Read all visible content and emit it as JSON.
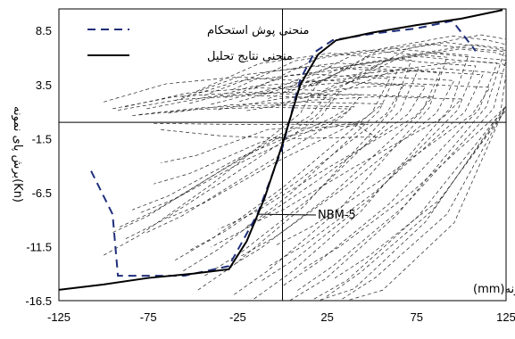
{
  "chart_data": {
    "type": "line",
    "xlim": [
      -125,
      125
    ],
    "ylim": [
      -16.5,
      10.5
    ],
    "x_ticks": [
      "-125",
      "-75",
      "-25",
      "25",
      "75",
      "125"
    ],
    "x_tick_values": [
      -125,
      -75,
      -25,
      25,
      75,
      125
    ],
    "y_ticks": [
      "8.5",
      "3.5",
      "-1.5",
      "-6.5",
      "-11.5",
      "-16.5"
    ],
    "y_tick_values": [
      8.5,
      3.5,
      -1.5,
      -6.5,
      -11.5,
      -16.5
    ],
    "ylabel": "برش پای نمونه(Kn)",
    "xlabel": "تغییرمکان بالای نمونه(mm)",
    "annotation": "NBM-5",
    "annotation_point": [
      -14,
      -8.5
    ],
    "legend_position": "top-left",
    "legend": [
      {
        "label": "منحنی پوش استحکام",
        "style": "dashed",
        "color": "#1f2f7a"
      },
      {
        "label": "منحنی نتایج تحلیل",
        "style": "solid",
        "color": "#000000"
      }
    ],
    "series": [
      {
        "name": "منحنی پوش استحکام",
        "style": "dashed",
        "color": "#1f2f7a",
        "x": [
          -107,
          -95,
          -92,
          -55,
          -30,
          -14,
          0,
          10,
          18,
          28,
          50,
          75,
          95,
          108
        ],
        "y": [
          -4.5,
          -8.5,
          -14.2,
          -14.2,
          -13.3,
          -8.5,
          -2.3,
          4.0,
          6.5,
          7.6,
          8.2,
          8.7,
          9.4,
          6.6
        ]
      },
      {
        "name": "منحنی نتایج تحلیل",
        "style": "solid",
        "color": "#000000",
        "x": [
          -125,
          -100,
          -75,
          -50,
          -30,
          -20,
          -10,
          0,
          10,
          20,
          30,
          50,
          75,
          100,
          123
        ],
        "y": [
          -15.5,
          -15.0,
          -14.4,
          -14.0,
          -13.6,
          -11.0,
          -7.0,
          -2.0,
          3.5,
          6.3,
          7.6,
          8.3,
          9.0,
          9.6,
          10.4
        ]
      }
    ],
    "hysteresis_loops": [
      [
        -100,
        4.2
      ],
      [
        -95,
        2.8
      ],
      [
        -92,
        2.5
      ],
      [
        -88,
        3.2
      ],
      [
        -84,
        1.4
      ],
      [
        -80,
        1.6
      ],
      [
        -76,
        2.8
      ],
      [
        -72,
        -0.2
      ],
      [
        -68,
        -1.5
      ],
      [
        -64,
        1.9
      ],
      [
        -60,
        4.5
      ],
      [
        -56,
        5.2
      ],
      [
        -52,
        3.9
      ],
      [
        -48,
        6.4
      ],
      [
        -44,
        5.5
      ],
      [
        -40,
        3.7
      ],
      [
        -36,
        2.6
      ],
      [
        -32,
        5.1
      ],
      [
        -28,
        6.7
      ],
      [
        -24,
        4.3
      ],
      [
        -20,
        2.4
      ],
      [
        -16,
        6.9
      ],
      [
        -12,
        5.8
      ],
      [
        -8,
        4.9
      ],
      [
        -4,
        3.6
      ],
      [
        0,
        6.1
      ],
      [
        4,
        7.3
      ],
      [
        8,
        6.4
      ],
      [
        12,
        5.0
      ],
      [
        16,
        7.4
      ],
      [
        20,
        8.0
      ],
      [
        24,
        6.8
      ],
      [
        28,
        5.7
      ],
      [
        32,
        7.2
      ],
      [
        36,
        8.1
      ]
    ]
  }
}
